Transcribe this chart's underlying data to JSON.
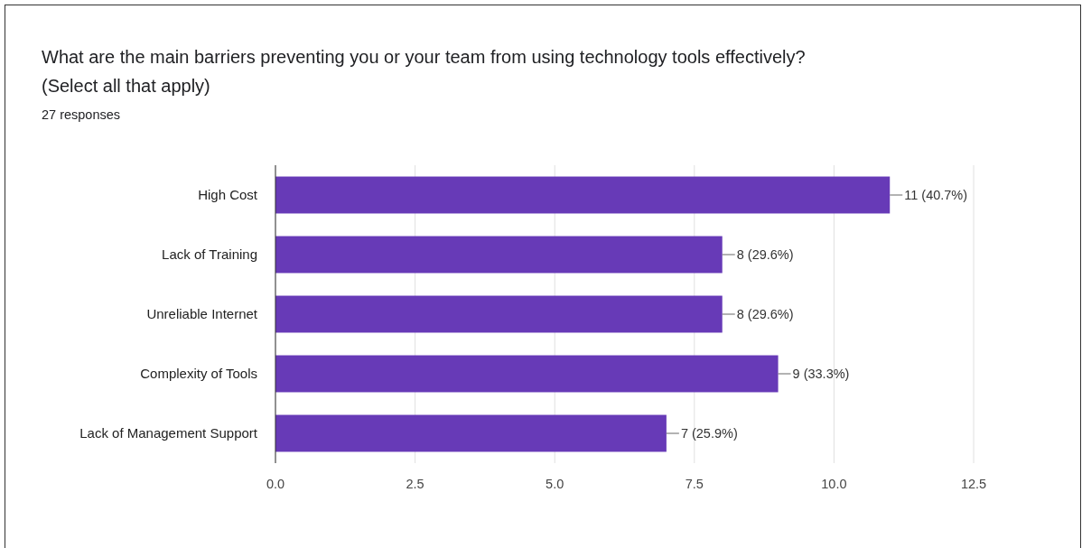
{
  "chart_data": {
    "type": "bar",
    "orientation": "horizontal",
    "title": "What are the main barriers preventing you or your team from using technology tools effectively? (Select all that apply)",
    "subtitle": "27 responses",
    "categories": [
      "High Cost",
      "Lack of Training",
      "Unreliable Internet",
      "Complexity of Tools",
      "Lack of Management Support"
    ],
    "values": [
      11,
      8,
      8,
      9,
      7
    ],
    "value_labels": [
      "11 (40.7%)",
      "8 (29.6%)",
      "8 (29.6%)",
      "9 (33.3%)",
      "7 (25.9%)"
    ],
    "color": "#673ab7",
    "xlim": [
      0,
      12.5
    ],
    "xticks": [
      {
        "value": 0,
        "label": "0.0"
      },
      {
        "value": 2.5,
        "label": "2.5"
      },
      {
        "value": 5,
        "label": "5.0"
      },
      {
        "value": 7.5,
        "label": "7.5"
      },
      {
        "value": 10,
        "label": "10.0"
      },
      {
        "value": 12.5,
        "label": "12.5"
      }
    ],
    "grid": "x"
  }
}
